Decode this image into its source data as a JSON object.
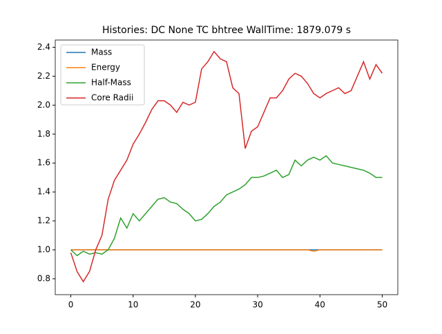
{
  "chart_data": {
    "type": "line",
    "title": "Histories: DC None TC bhtree WallTime: 1879.079 s",
    "x": [
      0,
      1,
      2,
      3,
      4,
      5,
      6,
      7,
      8,
      9,
      10,
      11,
      12,
      13,
      14,
      15,
      16,
      17,
      18,
      19,
      20,
      21,
      22,
      23,
      24,
      25,
      26,
      27,
      28,
      29,
      30,
      31,
      32,
      33,
      34,
      35,
      36,
      37,
      38,
      39,
      40,
      41,
      42,
      43,
      44,
      45,
      46,
      47,
      48,
      49,
      50
    ],
    "series": [
      {
        "name": "Mass",
        "color": "#1f77b4",
        "values": [
          1.0,
          1.0,
          1.0,
          1.0,
          1.0,
          1.0,
          1.0,
          1.0,
          1.0,
          1.0,
          1.0,
          1.0,
          1.0,
          1.0,
          1.0,
          1.0,
          1.0,
          1.0,
          1.0,
          1.0,
          1.0,
          1.0,
          1.0,
          1.0,
          1.0,
          1.0,
          1.0,
          1.0,
          1.0,
          1.0,
          1.0,
          1.0,
          1.0,
          1.0,
          1.0,
          1.0,
          1.0,
          1.0,
          1.0,
          1.0,
          1.0,
          1.0,
          1.0,
          1.0,
          1.0,
          1.0,
          1.0,
          1.0,
          1.0,
          1.0,
          1.0
        ]
      },
      {
        "name": "Energy",
        "color": "#ff7f0e",
        "values": [
          1.0,
          1.0,
          1.0,
          1.0,
          1.0,
          1.0,
          1.0,
          1.0,
          1.0,
          1.0,
          1.0,
          1.0,
          1.0,
          1.0,
          1.0,
          1.0,
          1.0,
          1.0,
          1.0,
          1.0,
          1.0,
          1.0,
          1.0,
          1.0,
          1.0,
          1.0,
          1.0,
          1.0,
          1.0,
          1.0,
          1.0,
          1.0,
          1.0,
          1.0,
          1.0,
          1.0,
          1.0,
          1.0,
          1.0,
          0.99,
          1.0,
          1.0,
          1.0,
          1.0,
          1.0,
          1.0,
          1.0,
          1.0,
          1.0,
          1.0,
          1.0
        ]
      },
      {
        "name": "Half-Mass",
        "color": "#2ca02c",
        "values": [
          1.0,
          0.96,
          0.99,
          0.97,
          0.98,
          0.97,
          1.0,
          1.08,
          1.22,
          1.15,
          1.25,
          1.2,
          1.25,
          1.3,
          1.35,
          1.36,
          1.33,
          1.32,
          1.28,
          1.25,
          1.2,
          1.21,
          1.25,
          1.3,
          1.33,
          1.38,
          1.4,
          1.42,
          1.45,
          1.5,
          1.5,
          1.51,
          1.53,
          1.55,
          1.5,
          1.52,
          1.62,
          1.58,
          1.62,
          1.64,
          1.62,
          1.65,
          1.6,
          1.59,
          1.58,
          1.57,
          1.56,
          1.55,
          1.53,
          1.5,
          1.5
        ]
      },
      {
        "name": "Core Radii",
        "color": "#d62728",
        "values": [
          0.98,
          0.85,
          0.78,
          0.85,
          1.0,
          1.1,
          1.35,
          1.48,
          1.55,
          1.62,
          1.73,
          1.8,
          1.88,
          1.97,
          2.03,
          2.03,
          2.0,
          1.95,
          2.02,
          2.0,
          2.02,
          2.25,
          2.3,
          2.37,
          2.32,
          2.3,
          2.12,
          2.08,
          1.7,
          1.82,
          1.85,
          1.95,
          2.05,
          2.05,
          2.1,
          2.18,
          2.22,
          2.2,
          2.15,
          2.08,
          2.05,
          2.08,
          2.1,
          2.12,
          2.08,
          2.1,
          2.2,
          2.3,
          2.18,
          2.28,
          2.22
        ]
      }
    ],
    "xlim": [
      -2.5,
      52.5
    ],
    "xticks": [
      0,
      10,
      20,
      30,
      40,
      50
    ],
    "ylim": [
      0.69,
      2.45
    ],
    "yticks": [
      0.8,
      {
        "value": 1.0,
        "label": "1.0"
      },
      1.2,
      1.4,
      1.6,
      1.8,
      {
        "value": 2.0,
        "label": "2.0"
      },
      2.2,
      2.4
    ],
    "legend": "upper left"
  }
}
